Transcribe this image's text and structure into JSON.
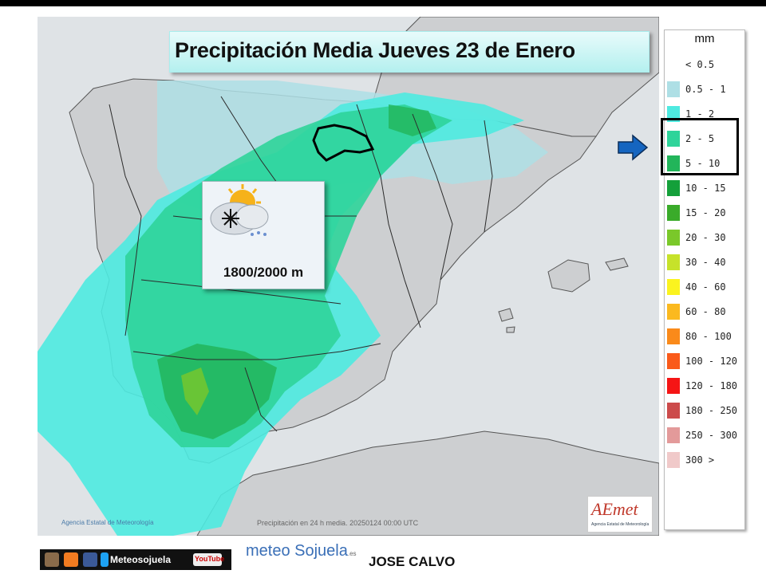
{
  "title": "Precipitación Media Jueves 23 de Enero",
  "snow": {
    "level": "1800/2000 m",
    "icon": "snow-cloud-sun-icon"
  },
  "map": {
    "caption": "Precipitación en 24 h media. 20250124 00:00 UTC",
    "agency": "Agencia Estatal de Meteorología",
    "highlight_region": "La Rioja"
  },
  "logo": {
    "name": "AEmet",
    "subtitle": "Agencia Estatal de Meteorología"
  },
  "legend": {
    "unit": "mm",
    "items": [
      {
        "label": "< 0.5",
        "color": "#ffffff"
      },
      {
        "label": "0.5 - 1",
        "color": "#aedfe5"
      },
      {
        "label": "1 - 2",
        "color": "#4eeae0"
      },
      {
        "label": "2 - 5",
        "color": "#2fd49a"
      },
      {
        "label": "5 - 10",
        "color": "#22b55a"
      },
      {
        "label": "10 - 15",
        "color": "#14a03a"
      },
      {
        "label": "15 - 20",
        "color": "#3aab2a"
      },
      {
        "label": "20 - 30",
        "color": "#7ac82a"
      },
      {
        "label": "30 - 40",
        "color": "#c6e22a"
      },
      {
        "label": "40 - 60",
        "color": "#fbf31f"
      },
      {
        "label": "60 - 80",
        "color": "#fbb91f"
      },
      {
        "label": "80 - 100",
        "color": "#fa8a1a"
      },
      {
        "label": "100 - 120",
        "color": "#fa5a1a"
      },
      {
        "label": "120 - 180",
        "color": "#f51515"
      },
      {
        "label": "180 - 250",
        "color": "#cc4b4b"
      },
      {
        "label": "250 - 300",
        "color": "#e39a9a"
      },
      {
        "label": "300 >",
        "color": "#f0c9c9"
      }
    ],
    "highlighted": [
      "2 - 5",
      "5 - 10"
    ]
  },
  "footer": {
    "brand": "Meteosojuela",
    "youtube": "YouTube",
    "site_logo": "meteo Sojuela",
    "site_suffix": ".es",
    "author": "JOSE CALVO"
  }
}
